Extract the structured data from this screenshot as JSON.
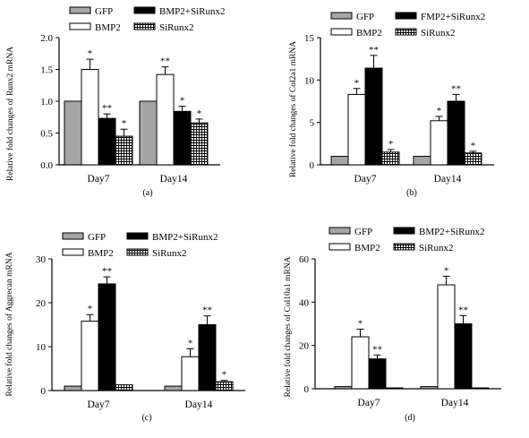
{
  "colors": {
    "gfp": "#a6a6a6",
    "bmp2": "#ffffff",
    "combo": "#000000",
    "sirunx2": "hatch",
    "axis": "#000000"
  },
  "chart_data": [
    {
      "type": "bar",
      "panel_label": "(a)",
      "ylabel": "Relative fold changes of Runx2 mRNA",
      "categories": [
        "Day7",
        "Day14"
      ],
      "ylim": [
        0,
        2.0
      ],
      "yticks": [
        "0.0",
        "0.5",
        "1.0",
        "1.5",
        "2.0"
      ],
      "ytick_values": [
        0,
        0.5,
        1.0,
        1.5,
        2.0
      ],
      "legend": [
        "GFP",
        "BMP2",
        "BMP2+SiRunx2",
        "SiRunx2"
      ],
      "series": [
        {
          "name": "GFP",
          "values": [
            1.0,
            1.0
          ],
          "errors": [
            0,
            0
          ],
          "marks": [
            "",
            ""
          ]
        },
        {
          "name": "BMP2",
          "values": [
            1.5,
            1.42
          ],
          "errors": [
            0.16,
            0.12
          ],
          "marks": [
            "*",
            "**"
          ]
        },
        {
          "name": "BMP2+SiRunx2",
          "values": [
            0.73,
            0.84
          ],
          "errors": [
            0.07,
            0.08
          ],
          "marks": [
            "**",
            "*"
          ]
        },
        {
          "name": "SiRunx2",
          "values": [
            0.45,
            0.66
          ],
          "errors": [
            0.11,
            0.06
          ],
          "marks": [
            "*",
            "*"
          ]
        }
      ]
    },
    {
      "type": "bar",
      "panel_label": "(b)",
      "ylabel": "Relative fold changes of Col2a1 mRNA",
      "categories": [
        "Day7",
        "Day14"
      ],
      "ylim": [
        0,
        15
      ],
      "yticks": [
        "0",
        "5",
        "10",
        "15"
      ],
      "ytick_values": [
        0,
        5,
        10,
        15
      ],
      "legend": [
        "GFP",
        "BMP2",
        "FMP2+SiRunx2",
        "SiRunx2"
      ],
      "series": [
        {
          "name": "GFP",
          "values": [
            1.0,
            1.0
          ],
          "errors": [
            0,
            0
          ],
          "marks": [
            "",
            ""
          ]
        },
        {
          "name": "BMP2",
          "values": [
            8.3,
            5.2
          ],
          "errors": [
            0.7,
            0.5
          ],
          "marks": [
            "*",
            "*"
          ]
        },
        {
          "name": "FMP2+SiRunx2",
          "values": [
            11.4,
            7.5
          ],
          "errors": [
            1.5,
            0.8
          ],
          "marks": [
            "**",
            "**"
          ]
        },
        {
          "name": "SiRunx2",
          "values": [
            1.5,
            1.4
          ],
          "errors": [
            0.3,
            0.2
          ],
          "marks": [
            "*",
            "*"
          ]
        }
      ]
    },
    {
      "type": "bar",
      "panel_label": "(c)",
      "ylabel": "Relative fold changes of Aggrecan mRNA",
      "categories": [
        "Day7",
        "Day14"
      ],
      "ylim": [
        0,
        30
      ],
      "yticks": [
        "0",
        "10",
        "20",
        "30"
      ],
      "ytick_values": [
        0,
        10,
        20,
        30
      ],
      "legend": [
        "GFP",
        "BMP2",
        "BMP2+SiRunx2",
        "SiRunx2"
      ],
      "series": [
        {
          "name": "GFP",
          "values": [
            1.0,
            1.0
          ],
          "errors": [
            0,
            0
          ],
          "marks": [
            "",
            ""
          ]
        },
        {
          "name": "BMP2",
          "values": [
            15.8,
            7.7
          ],
          "errors": [
            1.5,
            1.8
          ],
          "marks": [
            "*",
            "*"
          ]
        },
        {
          "name": "BMP2+SiRunx2",
          "values": [
            24.3,
            15.0
          ],
          "errors": [
            1.6,
            2.0
          ],
          "marks": [
            "**",
            "**"
          ]
        },
        {
          "name": "SiRunx2",
          "values": [
            1.3,
            2.0
          ],
          "errors": [
            0,
            0.3
          ],
          "marks": [
            "",
            "*"
          ]
        }
      ]
    },
    {
      "type": "bar",
      "panel_label": "(d)",
      "ylabel": "Relative fold changes of Col10a1 mRNA",
      "categories": [
        "Day7",
        "Day14"
      ],
      "ylim": [
        0,
        60
      ],
      "yticks": [
        "0",
        "20",
        "40",
        "60"
      ],
      "ytick_values": [
        0,
        20,
        40,
        60
      ],
      "legend": [
        "GFP",
        "BMP2",
        "BMP2+SiRunx2",
        "SiRunx2"
      ],
      "series": [
        {
          "name": "GFP",
          "values": [
            1.0,
            1.0
          ],
          "errors": [
            0,
            0
          ],
          "marks": [
            "",
            ""
          ]
        },
        {
          "name": "BMP2",
          "values": [
            24.0,
            48.0
          ],
          "errors": [
            3.5,
            4.0
          ],
          "marks": [
            "*",
            "*"
          ]
        },
        {
          "name": "BMP2+SiRunx2",
          "values": [
            13.8,
            30.0
          ],
          "errors": [
            1.8,
            3.8
          ],
          "marks": [
            "**",
            "**"
          ]
        },
        {
          "name": "SiRunx2",
          "values": [
            0.4,
            0.4
          ],
          "errors": [
            0,
            0
          ],
          "marks": [
            "",
            ""
          ]
        }
      ]
    }
  ]
}
